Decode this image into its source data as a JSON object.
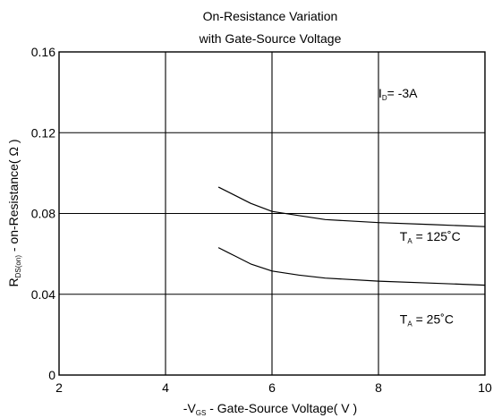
{
  "chart_data": {
    "type": "line",
    "title": [
      "On-Resistance Variation",
      "with Gate-Source Voltage"
    ],
    "xlabel": {
      "prefix": "-V",
      "sub": "GS",
      "suffix": " - Gate-Source Voltage( V )"
    },
    "ylabel": {
      "prefix": "R",
      "sub": "DS(on)",
      "suffix": " - on-Resistance( Ω )"
    },
    "xlim": [
      2,
      10
    ],
    "ylim": [
      0,
      0.16
    ],
    "xticks": [
      2,
      4,
      6,
      8,
      10
    ],
    "xtick_labels": [
      "2",
      "4",
      "6",
      "8",
      "10"
    ],
    "yticks": [
      0,
      0.04,
      0.08,
      0.12,
      0.16
    ],
    "ytick_labels": [
      "0",
      "0.04",
      "0.08",
      "0.12",
      "0.16"
    ],
    "grid": true,
    "annotations": [
      {
        "prefix": "I",
        "sub": "D",
        "suffix": "= -3A",
        "x": 8.0,
        "y": 0.1375
      },
      {
        "prefix": "T",
        "sub": "A",
        "suffix": " = 125˚C",
        "x": 8.4,
        "y": 0.0665
      },
      {
        "prefix": "T",
        "sub": "A",
        "suffix": " = 25˚C",
        "x": 8.4,
        "y": 0.0255
      }
    ],
    "series": [
      {
        "x": [
          5.0,
          5.3,
          5.6,
          6.0,
          6.5,
          7.0,
          8.0,
          9.0,
          10.0
        ],
        "values": [
          0.093,
          0.089,
          0.085,
          0.081,
          0.079,
          0.077,
          0.0755,
          0.0745,
          0.0735
        ]
      },
      {
        "x": [
          5.0,
          5.3,
          5.6,
          6.0,
          6.5,
          7.0,
          8.0,
          9.0,
          10.0
        ],
        "values": [
          0.063,
          0.059,
          0.055,
          0.0515,
          0.0495,
          0.048,
          0.0465,
          0.0455,
          0.0445
        ]
      }
    ],
    "colors": {
      "grid": "#000000",
      "line": "#000000",
      "text": "#000000"
    }
  }
}
